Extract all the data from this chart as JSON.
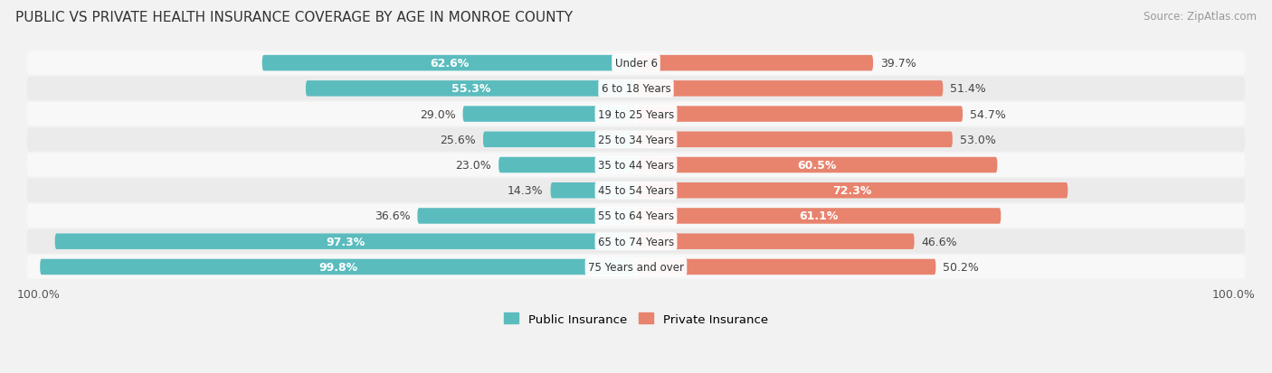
{
  "title": "PUBLIC VS PRIVATE HEALTH INSURANCE COVERAGE BY AGE IN MONROE COUNTY",
  "source": "Source: ZipAtlas.com",
  "categories": [
    "Under 6",
    "6 to 18 Years",
    "19 to 25 Years",
    "25 to 34 Years",
    "35 to 44 Years",
    "45 to 54 Years",
    "55 to 64 Years",
    "65 to 74 Years",
    "75 Years and over"
  ],
  "public_values": [
    62.6,
    55.3,
    29.0,
    25.6,
    23.0,
    14.3,
    36.6,
    97.3,
    99.8
  ],
  "private_values": [
    39.7,
    51.4,
    54.7,
    53.0,
    60.5,
    72.3,
    61.1,
    46.6,
    50.2
  ],
  "public_color": "#5bbcbe",
  "private_color": "#e8836e",
  "public_label": "Public Insurance",
  "private_label": "Private Insurance",
  "bar_height": 0.62,
  "bg_color": "#f2f2f2",
  "row_bg_even": "#f8f8f8",
  "row_bg_odd": "#ebebeb",
  "label_fontsize": 9.0,
  "title_fontsize": 11.0,
  "source_fontsize": 8.5,
  "axis_max": 100.0,
  "pub_white_threshold": 45,
  "priv_white_threshold": 58
}
